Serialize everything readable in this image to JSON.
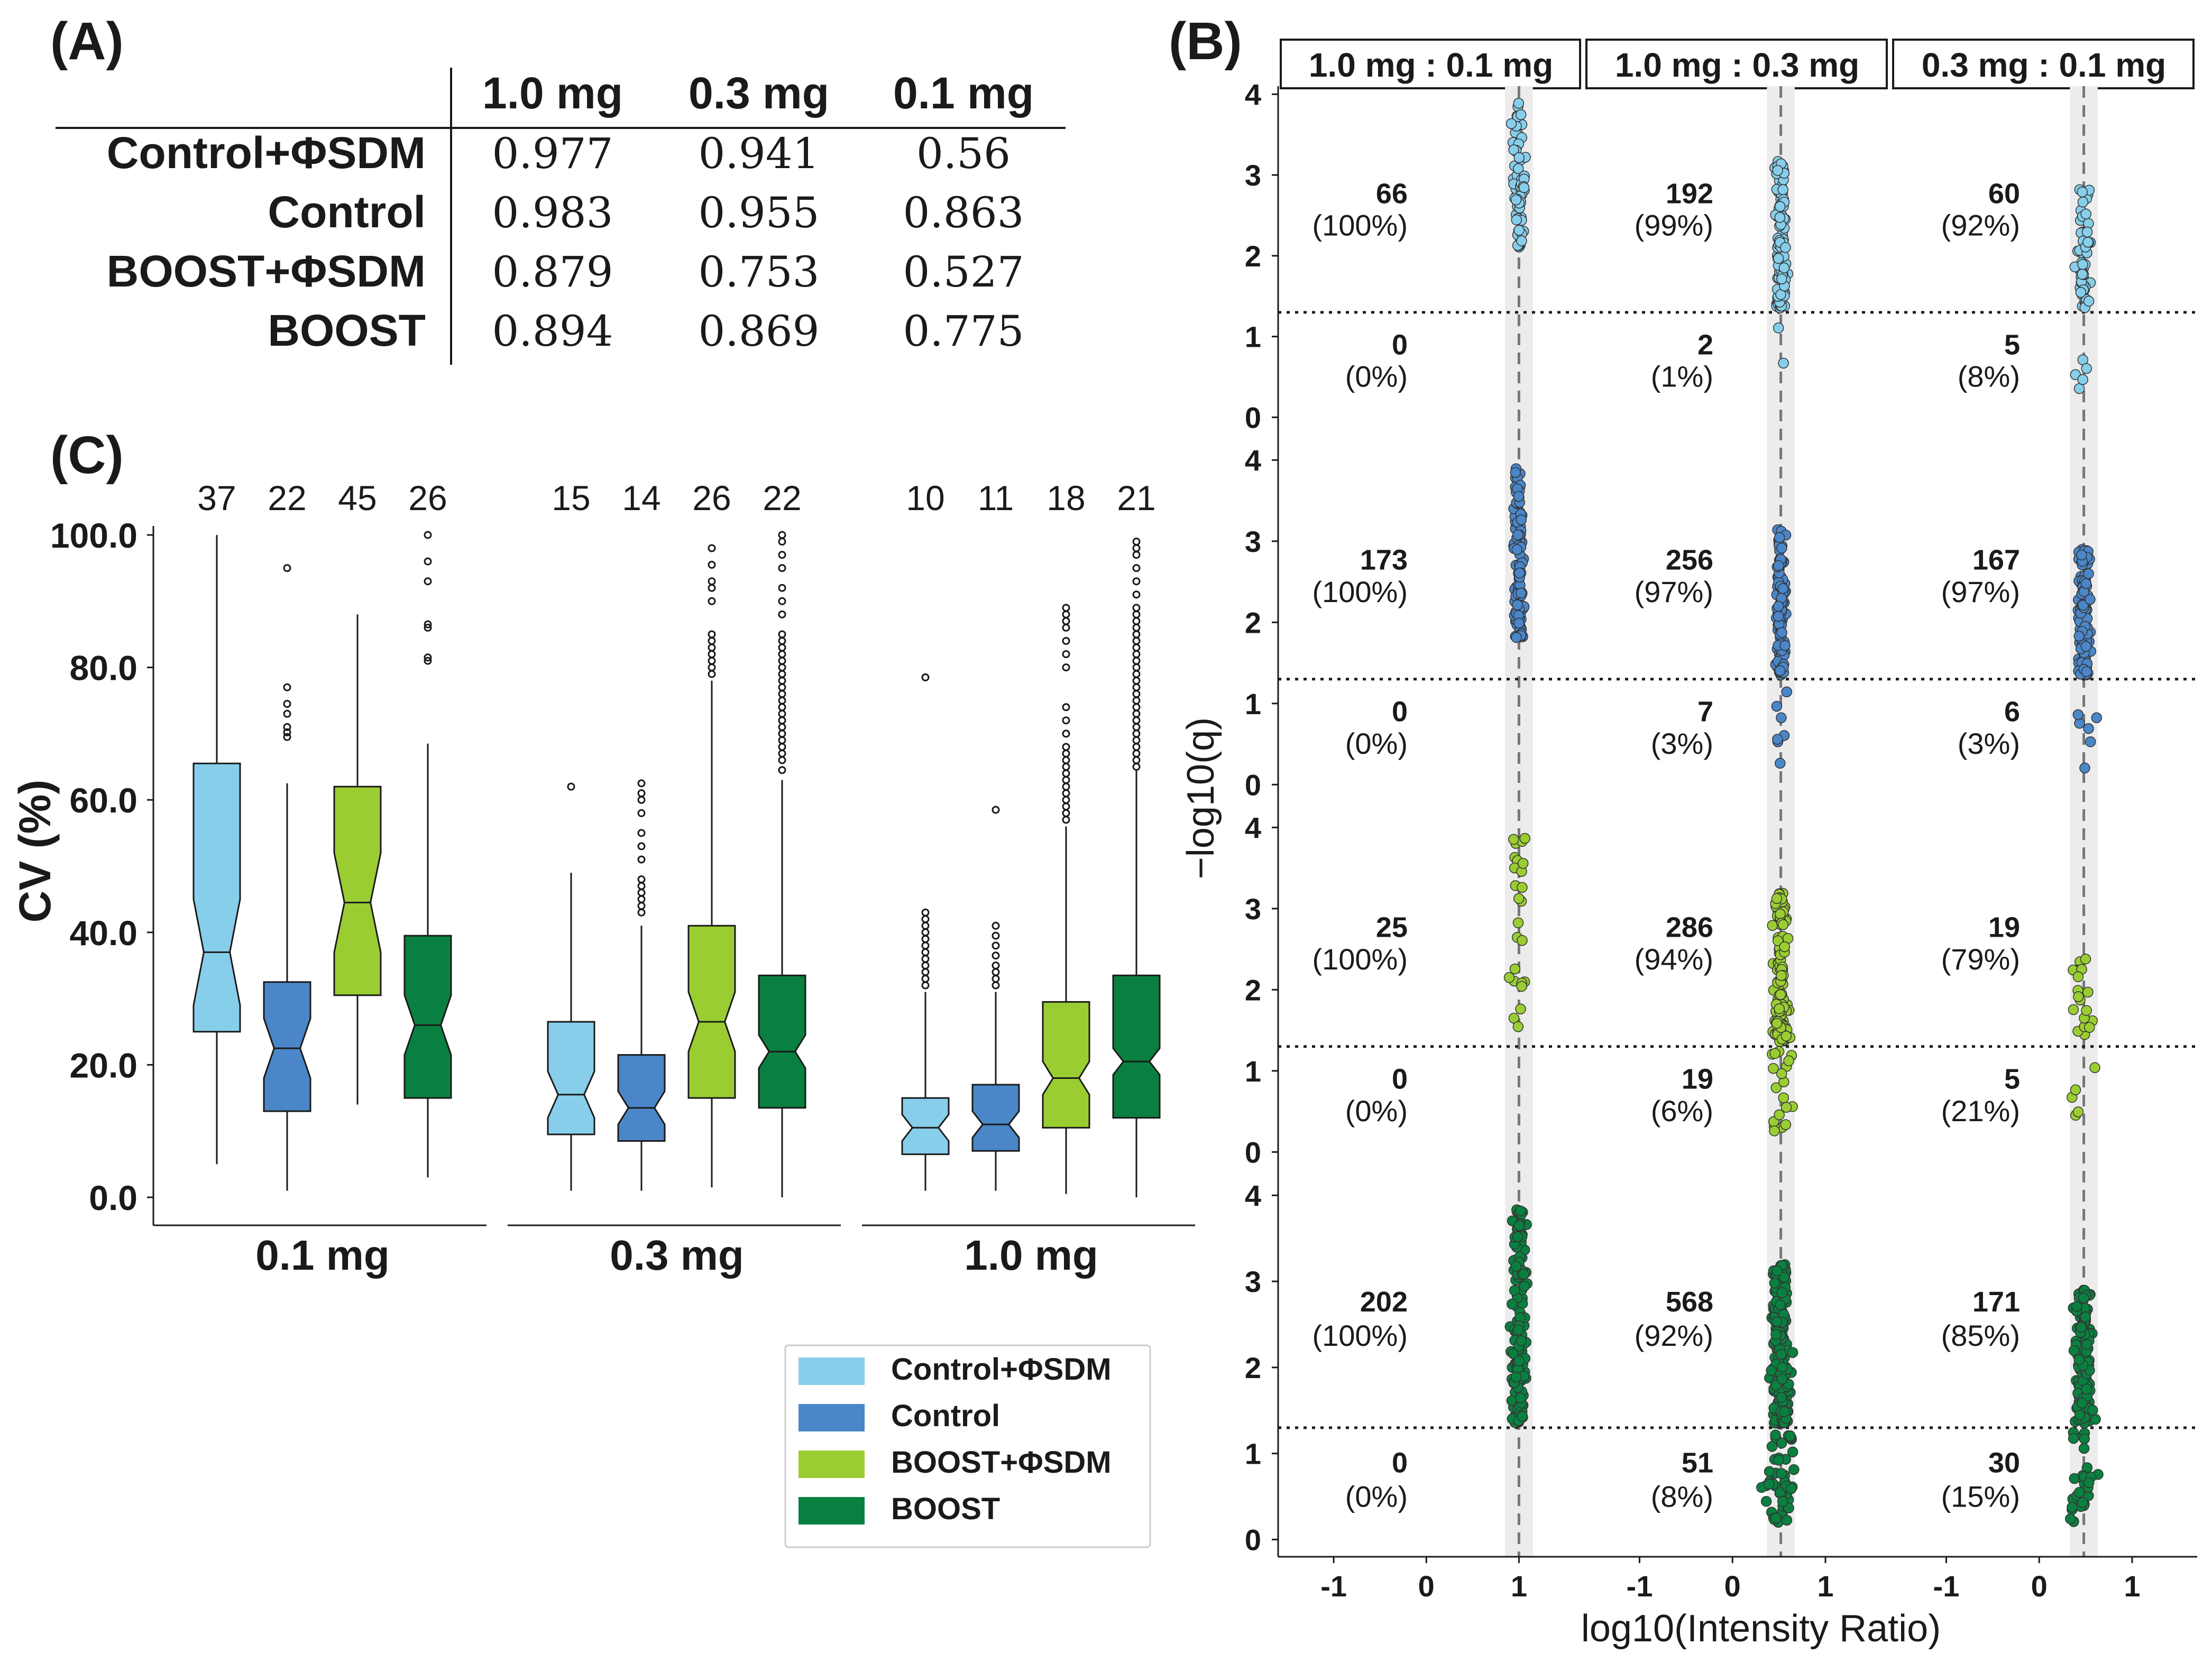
{
  "panel_labels": {
    "a": "(A)",
    "b": "(B)",
    "c": "(C)"
  },
  "colors": {
    "control_phisdm": "#87ceeb",
    "control": "#4a86c8",
    "boost_phisdm": "#9acd32",
    "boost": "#0a8040",
    "shade": "#ececec"
  },
  "table": {
    "columns": [
      "1.0 mg",
      "0.3 mg",
      "0.1 mg"
    ],
    "rows": [
      {
        "label": "Control+ΦSDM",
        "values": [
          "0.977",
          "0.941",
          "0.56"
        ]
      },
      {
        "label": "Control",
        "values": [
          "0.983",
          "0.955",
          "0.863"
        ]
      },
      {
        "label": "BOOST+ΦSDM",
        "values": [
          "0.879",
          "0.753",
          "0.527"
        ]
      },
      {
        "label": "BOOST",
        "values": [
          "0.894",
          "0.869",
          "0.775"
        ]
      }
    ]
  },
  "chart_data": [
    {
      "id": "boxplot",
      "type": "box",
      "ylabel": "CV (%)",
      "ylim": [
        0,
        100
      ],
      "yticks": [
        "0.0",
        "20.0",
        "40.0",
        "60.0",
        "80.0",
        "100.0"
      ],
      "groups": [
        "0.1 mg",
        "0.3 mg",
        "1.0 mg"
      ],
      "legend": {
        "position": "bottom-right",
        "entries": [
          "Control+ΦSDM",
          "Control",
          "BOOST+ΦSDM",
          "BOOST"
        ]
      },
      "series": [
        {
          "name": "Control+ΦSDM",
          "color": "#87ceeb"
        },
        {
          "name": "Control",
          "color": "#4a86c8"
        },
        {
          "name": "BOOST+ΦSDM",
          "color": "#9acd32"
        },
        {
          "name": "BOOST",
          "color": "#0a8040"
        }
      ],
      "boxes": [
        {
          "group": "0.1 mg",
          "series": "Control+ΦSDM",
          "count": "37",
          "min": 5,
          "q1": 25,
          "median": 37,
          "q3": 65.5,
          "max": 100,
          "notch": [
            29,
            45
          ],
          "outliers": []
        },
        {
          "group": "0.1 mg",
          "series": "Control",
          "count": "22",
          "min": 1,
          "q1": 13,
          "median": 22.5,
          "q3": 32.5,
          "max": 62.5,
          "notch": [
            18,
            27
          ],
          "outliers": [
            69.5,
            70.2,
            71,
            73,
            74.5,
            77,
            95
          ]
        },
        {
          "group": "0.1 mg",
          "series": "BOOST+ΦSDM",
          "count": "45",
          "min": 14,
          "q1": 30.5,
          "median": 44.5,
          "q3": 62,
          "max": 88,
          "notch": [
            37,
            52
          ],
          "outliers": []
        },
        {
          "group": "0.1 mg",
          "series": "BOOST",
          "count": "26",
          "min": 3,
          "q1": 15,
          "median": 26,
          "q3": 39.5,
          "max": 68.5,
          "notch": [
            21.5,
            30.5
          ],
          "outliers": [
            81,
            81.5,
            86,
            86.5,
            93,
            96,
            100
          ]
        },
        {
          "group": "0.3 mg",
          "series": "Control+ΦSDM",
          "count": "15",
          "min": 1,
          "q1": 9.5,
          "median": 15.5,
          "q3": 26.5,
          "max": 49,
          "notch": [
            12,
            19
          ],
          "outliers": [
            62
          ]
        },
        {
          "group": "0.3 mg",
          "series": "Control",
          "count": "14",
          "min": 1,
          "q1": 8.5,
          "median": 13.5,
          "q3": 21.5,
          "max": 41,
          "notch": [
            11,
            16
          ],
          "outliers": [
            43,
            44,
            45,
            46,
            47,
            48,
            51,
            53,
            55,
            58,
            60,
            61,
            62.5
          ]
        },
        {
          "group": "0.3 mg",
          "series": "BOOST+ΦSDM",
          "count": "26",
          "min": 1.5,
          "q1": 15,
          "median": 26.5,
          "q3": 41,
          "max": 78,
          "notch": [
            22,
            31
          ],
          "outliers": [
            79,
            80,
            81,
            82,
            83,
            84,
            85,
            90,
            92,
            93,
            95.5,
            98
          ]
        },
        {
          "group": "0.3 mg",
          "series": "BOOST",
          "count": "22",
          "min": 0,
          "q1": 13.5,
          "median": 22,
          "q3": 33.5,
          "max": 63,
          "notch": [
            19.5,
            24.5
          ],
          "outliers": [
            64.5,
            66,
            67,
            68,
            69,
            70,
            71,
            72,
            73,
            74,
            75,
            76,
            77,
            78,
            79,
            80,
            81,
            82,
            83,
            84,
            85,
            88,
            90,
            92,
            95,
            97,
            99,
            100
          ]
        },
        {
          "group": "1.0 mg",
          "series": "Control+ΦSDM",
          "count": "10",
          "min": 1,
          "q1": 6.5,
          "median": 10.5,
          "q3": 15,
          "max": 31,
          "notch": [
            8.5,
            12.5
          ],
          "outliers": [
            32,
            33,
            34,
            35,
            36,
            37,
            38,
            39,
            40,
            41,
            42,
            43,
            78.5
          ]
        },
        {
          "group": "1.0 mg",
          "series": "Control",
          "count": "11",
          "min": 1,
          "q1": 7,
          "median": 11,
          "q3": 17,
          "max": 31,
          "notch": [
            9,
            13
          ],
          "outliers": [
            32,
            33,
            34,
            35,
            36.5,
            38,
            39.5,
            41,
            58.5
          ]
        },
        {
          "group": "1.0 mg",
          "series": "BOOST+ΦSDM",
          "count": "18",
          "min": 0.5,
          "q1": 10.5,
          "median": 18,
          "q3": 29.5,
          "max": 56,
          "notch": [
            15.5,
            20.5
          ],
          "outliers": [
            57,
            58,
            59,
            60,
            61,
            62,
            63,
            64,
            65,
            66,
            67,
            68,
            70,
            72,
            74,
            80,
            82,
            84,
            86,
            87,
            88,
            89
          ]
        },
        {
          "group": "1.0 mg",
          "series": "BOOST",
          "count": "21",
          "min": 0,
          "q1": 12,
          "median": 20.5,
          "q3": 33.5,
          "max": 64.5,
          "notch": [
            18.5,
            22.5
          ],
          "outliers": [
            65,
            66,
            67,
            68,
            69,
            70,
            71,
            72,
            73,
            74,
            75,
            76,
            77,
            78,
            79,
            80,
            81,
            82,
            83,
            84,
            85,
            86,
            87,
            88,
            89,
            91,
            93,
            95,
            97,
            98,
            99
          ]
        }
      ]
    },
    {
      "id": "volcano",
      "type": "scatter",
      "xlabel": "log10(Intensity Ratio)",
      "ylabel": "−log10(q)",
      "xlim": [
        -1.6,
        1.7
      ],
      "ylim": [
        -0.2,
        4.1
      ],
      "xticks": [
        "-1",
        "0",
        "1"
      ],
      "yticks": [
        "0",
        "1",
        "2",
        "3",
        "4"
      ],
      "threshold_y": 1.3,
      "columns": [
        {
          "title": "1.0 mg : 0.1 mg",
          "expected_ratio": 1.0
        },
        {
          "title": "1.0 mg : 0.3 mg",
          "expected_ratio": 0.52
        },
        {
          "title": "0.3 mg : 0.1 mg",
          "expected_ratio": 0.48
        }
      ],
      "rows": [
        {
          "series": "Control+ΦSDM",
          "color": "#87ceeb",
          "cells": [
            {
              "above": "66",
              "above_pct": "(100%)",
              "below": "0",
              "below_pct": "(0%)",
              "n_above": 66,
              "n_below": 0,
              "spread": 0.12,
              "ymin": 2.1,
              "ymax": 3.9
            },
            {
              "above": "192",
              "above_pct": "(99%)",
              "below": "2",
              "below_pct": "(1%)",
              "n_above": 100,
              "n_below": 2,
              "spread": 0.12,
              "ymin": 1.35,
              "ymax": 3.2
            },
            {
              "above": "60",
              "above_pct": "(92%)",
              "below": "5",
              "below_pct": "(8%)",
              "n_above": 60,
              "n_below": 5,
              "spread": 0.15,
              "ymin": 1.35,
              "ymax": 2.9
            }
          ]
        },
        {
          "series": "Control",
          "color": "#4a86c8",
          "cells": [
            {
              "above": "173",
              "above_pct": "(100%)",
              "below": "0",
              "below_pct": "(0%)",
              "n_above": 120,
              "n_below": 0,
              "spread": 0.1,
              "ymin": 1.8,
              "ymax": 3.9
            },
            {
              "above": "256",
              "above_pct": "(97%)",
              "below": "7",
              "below_pct": "(3%)",
              "n_above": 130,
              "n_below": 7,
              "spread": 0.09,
              "ymin": 1.35,
              "ymax": 3.2
            },
            {
              "above": "167",
              "above_pct": "(97%)",
              "below": "6",
              "below_pct": "(3%)",
              "n_above": 120,
              "n_below": 6,
              "spread": 0.12,
              "ymin": 1.35,
              "ymax": 2.9
            }
          ]
        },
        {
          "series": "BOOST+ΦSDM",
          "color": "#9acd32",
          "cells": [
            {
              "above": "25",
              "above_pct": "(100%)",
              "below": "0",
              "below_pct": "(0%)",
              "n_above": 25,
              "n_below": 0,
              "spread": 0.15,
              "ymin": 1.5,
              "ymax": 3.9
            },
            {
              "above": "286",
              "above_pct": "(94%)",
              "below": "19",
              "below_pct": "(6%)",
              "n_above": 150,
              "n_below": 19,
              "spread": 0.14,
              "ymin": 1.35,
              "ymax": 3.2
            },
            {
              "above": "19",
              "above_pct": "(79%)",
              "below": "5",
              "below_pct": "(21%)",
              "n_above": 19,
              "n_below": 5,
              "spread": 0.2,
              "ymin": 1.4,
              "ymax": 2.4
            }
          ]
        },
        {
          "series": "BOOST",
          "color": "#0a8040",
          "cells": [
            {
              "above": "202",
              "above_pct": "(100%)",
              "below": "0",
              "below_pct": "(0%)",
              "n_above": 150,
              "n_below": 0,
              "spread": 0.15,
              "ymin": 1.35,
              "ymax": 3.9
            },
            {
              "above": "568",
              "above_pct": "(92%)",
              "below": "51",
              "below_pct": "(8%)",
              "n_above": 260,
              "n_below": 51,
              "spread": 0.18,
              "ymin": 1.35,
              "ymax": 3.2
            },
            {
              "above": "171",
              "above_pct": "(85%)",
              "below": "30",
              "below_pct": "(15%)",
              "n_above": 150,
              "n_below": 30,
              "spread": 0.18,
              "ymin": 1.35,
              "ymax": 2.9
            }
          ]
        }
      ]
    }
  ]
}
